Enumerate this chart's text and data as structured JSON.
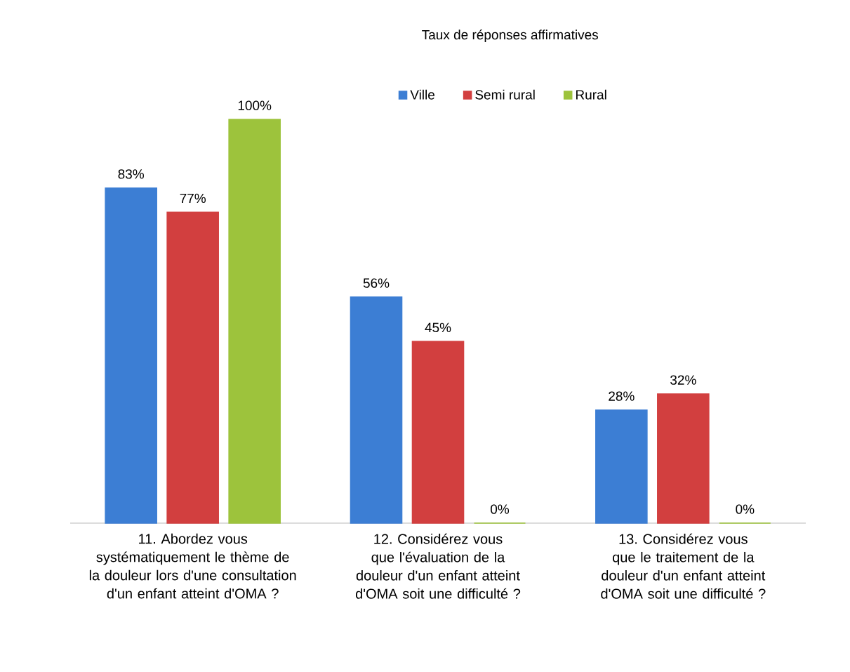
{
  "chart_data": {
    "type": "bar",
    "title": "Taux de réponses affirmatives",
    "categories": [
      "11. Abordez vous systématiquement le thème de la douleur lors d'une consultation d'un enfant atteint d'OMA ?",
      "12. Considérez vous que l'évaluation de la douleur d'un enfant atteint d'OMA soit une difficulté ?",
      "13. Considérez vous que le traitement de la douleur d'un enfant atteint d'OMA soit une difficulté ?"
    ],
    "series": [
      {
        "name": "Ville",
        "color": "#3c7ed4",
        "values": [
          83,
          56,
          28
        ],
        "value_labels": [
          "83%",
          "56%",
          "28%"
        ]
      },
      {
        "name": "Semi rural",
        "color": "#d23f3f",
        "values": [
          77,
          45,
          32
        ],
        "value_labels": [
          "77%",
          "45%",
          "32%"
        ]
      },
      {
        "name": "Rural",
        "color": "#9dc33c",
        "values": [
          100,
          0,
          0
        ],
        "value_labels": [
          "100%",
          "0%",
          "0%"
        ]
      }
    ],
    "legend": "top"
  }
}
